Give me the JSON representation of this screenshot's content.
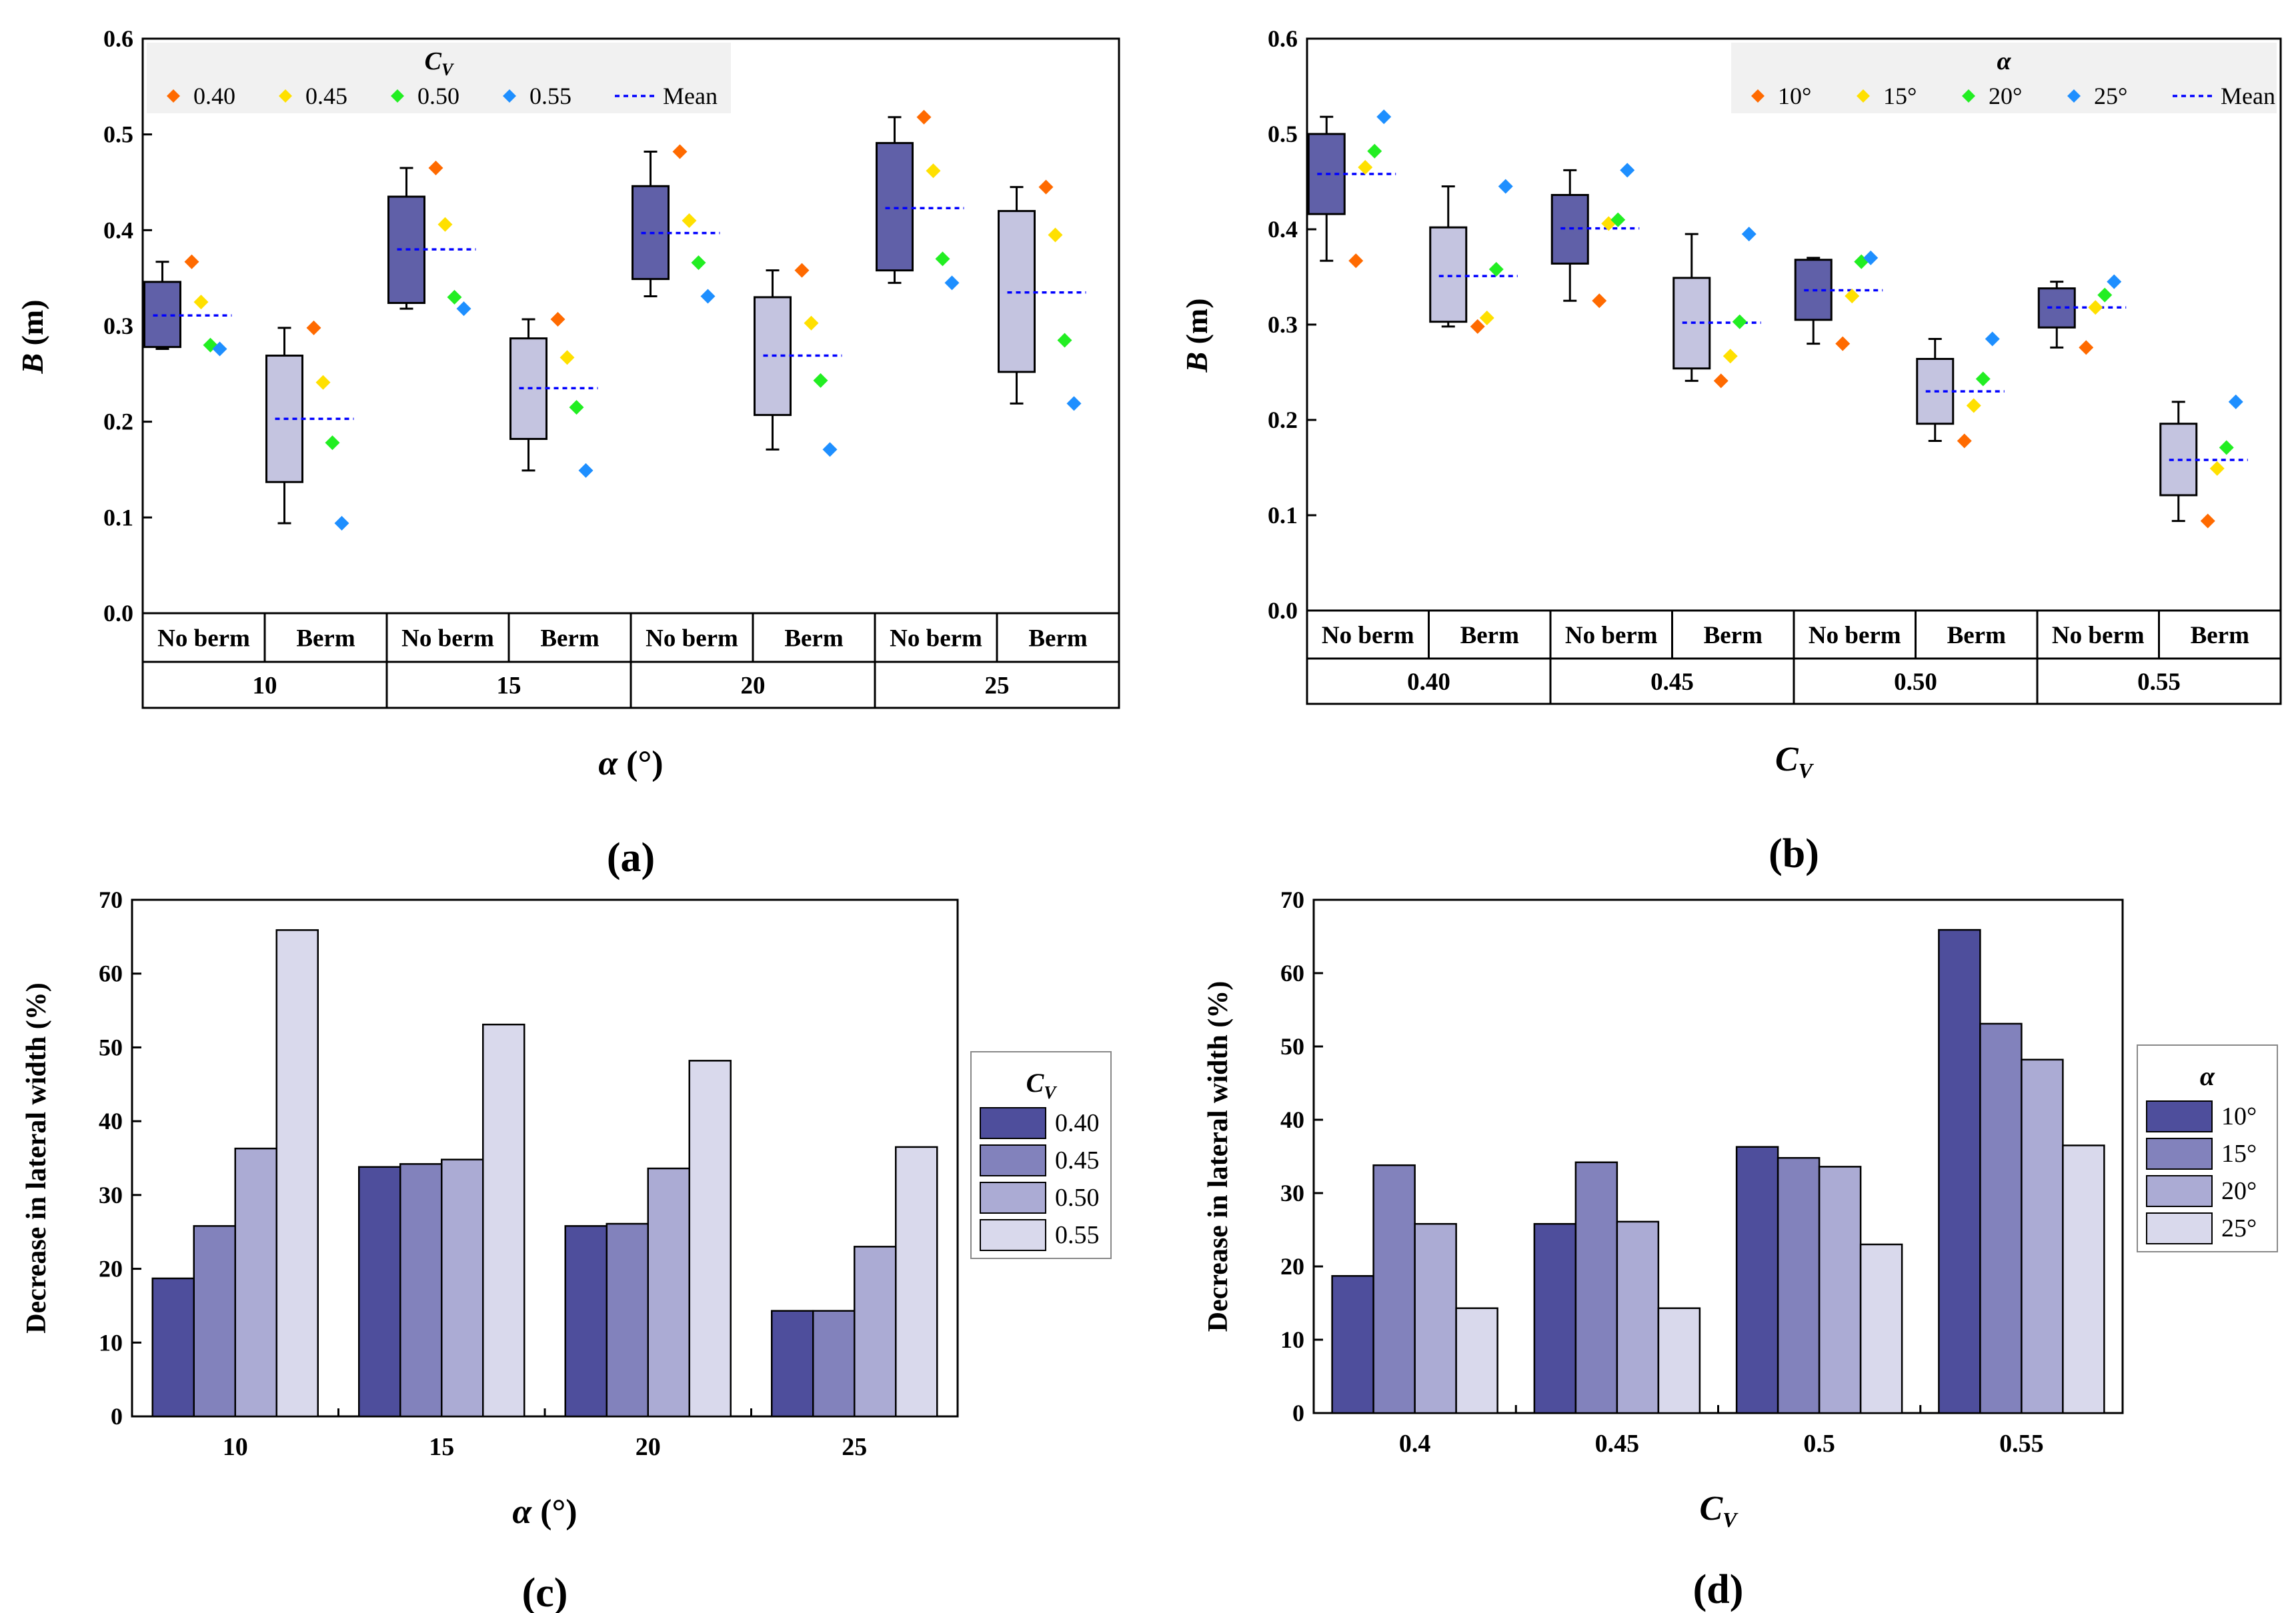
{
  "colors": {
    "box_noberm": "#6060a8",
    "box_berm": "#c4c4e0",
    "mean_line": "#0000ff",
    "pt_040": "#ff6a00",
    "pt_045": "#ffe000",
    "pt_050": "#22ee22",
    "pt_055": "#1e8fff",
    "bar1": "#4e4e9c",
    "bar2": "#8282bc",
    "bar3": "#ababd4",
    "bar4": "#d9d9ec",
    "legend_bg": "#f1f1f1"
  },
  "chart_data": [
    {
      "id": "a",
      "type": "box",
      "panel_label": "(a)",
      "ylabel_main": "B",
      "ylabel_unit": " (m)",
      "xlabel_main": "α",
      "xlabel_unit": " (°)",
      "ylim": [
        0,
        0.6
      ],
      "yticks": [
        "0.0",
        "0.1",
        "0.2",
        "0.3",
        "0.4",
        "0.5",
        "0.6"
      ],
      "groups": [
        "10",
        "15",
        "20",
        "25"
      ],
      "subgroups": [
        "No berm",
        "Berm"
      ],
      "legend": {
        "title": "C",
        "title_sub": "V",
        "entries": [
          "0.40",
          "0.45",
          "0.50",
          "0.55"
        ],
        "mean_label": "Mean"
      },
      "boxes": [
        {
          "group": "10",
          "sub": "No berm",
          "min": 0.276,
          "q1": 0.278,
          "q3": 0.346,
          "max": 0.367,
          "mean": 0.311,
          "points": [
            0.367,
            0.325,
            0.28,
            0.276
          ]
        },
        {
          "group": "10",
          "sub": "Berm",
          "min": 0.094,
          "q1": 0.137,
          "q3": 0.269,
          "max": 0.298,
          "mean": 0.203,
          "points": [
            0.298,
            0.241,
            0.178,
            0.094
          ]
        },
        {
          "group": "15",
          "sub": "No berm",
          "min": 0.318,
          "q1": 0.324,
          "q3": 0.435,
          "max": 0.465,
          "mean": 0.38,
          "points": [
            0.465,
            0.406,
            0.33,
            0.318
          ]
        },
        {
          "group": "15",
          "sub": "Berm",
          "min": 0.149,
          "q1": 0.182,
          "q3": 0.287,
          "max": 0.307,
          "mean": 0.235,
          "points": [
            0.307,
            0.267,
            0.215,
            0.149
          ]
        },
        {
          "group": "20",
          "sub": "No berm",
          "min": 0.331,
          "q1": 0.349,
          "q3": 0.446,
          "max": 0.482,
          "mean": 0.397,
          "points": [
            0.482,
            0.41,
            0.366,
            0.331
          ]
        },
        {
          "group": "20",
          "sub": "Berm",
          "min": 0.171,
          "q1": 0.207,
          "q3": 0.33,
          "max": 0.358,
          "mean": 0.269,
          "points": [
            0.358,
            0.303,
            0.243,
            0.171
          ]
        },
        {
          "group": "25",
          "sub": "No berm",
          "min": 0.345,
          "q1": 0.358,
          "q3": 0.491,
          "max": 0.518,
          "mean": 0.423,
          "points": [
            0.518,
            0.462,
            0.37,
            0.345
          ]
        },
        {
          "group": "25",
          "sub": "Berm",
          "min": 0.219,
          "q1": 0.252,
          "q3": 0.42,
          "max": 0.445,
          "mean": 0.335,
          "points": [
            0.445,
            0.395,
            0.285,
            0.219
          ]
        }
      ]
    },
    {
      "id": "b",
      "type": "box",
      "panel_label": "(b)",
      "ylabel_main": "B",
      "ylabel_unit": " (m)",
      "xlabel_main": "C",
      "xlabel_sub": "V",
      "ylim": [
        0,
        0.6
      ],
      "yticks": [
        "0.0",
        "0.1",
        "0.2",
        "0.3",
        "0.4",
        "0.5",
        "0.6"
      ],
      "groups": [
        "0.40",
        "0.45",
        "0.50",
        "0.55"
      ],
      "subgroups": [
        "No berm",
        "Berm"
      ],
      "legend": {
        "title": "α",
        "entries": [
          "10°",
          "15°",
          "20°",
          "25°"
        ],
        "mean_label": "Mean"
      },
      "boxes": [
        {
          "group": "0.40",
          "sub": "No berm",
          "min": 0.367,
          "q1": 0.416,
          "q3": 0.5,
          "max": 0.518,
          "mean": 0.458,
          "points": [
            0.367,
            0.465,
            0.482,
            0.518
          ]
        },
        {
          "group": "0.40",
          "sub": "Berm",
          "min": 0.298,
          "q1": 0.303,
          "q3": 0.402,
          "max": 0.445,
          "mean": 0.351,
          "points": [
            0.298,
            0.307,
            0.358,
            0.445
          ]
        },
        {
          "group": "0.45",
          "sub": "No berm",
          "min": 0.325,
          "q1": 0.364,
          "q3": 0.436,
          "max": 0.462,
          "mean": 0.401,
          "points": [
            0.325,
            0.406,
            0.41,
            0.462
          ]
        },
        {
          "group": "0.45",
          "sub": "Berm",
          "min": 0.241,
          "q1": 0.254,
          "q3": 0.349,
          "max": 0.395,
          "mean": 0.302,
          "points": [
            0.241,
            0.267,
            0.303,
            0.395
          ]
        },
        {
          "group": "0.50",
          "sub": "No berm",
          "min": 0.28,
          "q1": 0.305,
          "q3": 0.368,
          "max": 0.37,
          "mean": 0.336,
          "points": [
            0.28,
            0.33,
            0.366,
            0.37
          ]
        },
        {
          "group": "0.50",
          "sub": "Berm",
          "min": 0.178,
          "q1": 0.196,
          "q3": 0.264,
          "max": 0.285,
          "mean": 0.23,
          "points": [
            0.178,
            0.215,
            0.243,
            0.285
          ]
        },
        {
          "group": "0.55",
          "sub": "No berm",
          "min": 0.276,
          "q1": 0.297,
          "q3": 0.338,
          "max": 0.345,
          "mean": 0.318,
          "points": [
            0.276,
            0.318,
            0.331,
            0.345
          ]
        },
        {
          "group": "0.55",
          "sub": "Berm",
          "min": 0.094,
          "q1": 0.121,
          "q3": 0.196,
          "max": 0.219,
          "mean": 0.158,
          "points": [
            0.094,
            0.149,
            0.171,
            0.219
          ]
        }
      ]
    },
    {
      "id": "c",
      "type": "bar",
      "panel_label": "(c)",
      "ylabel": "Decrease in lateral width (%)",
      "xlabel_main": "α",
      "xlabel_unit": " (°)",
      "ylim": [
        0,
        70
      ],
      "yticks": [
        "0",
        "10",
        "20",
        "30",
        "40",
        "50",
        "60",
        "70"
      ],
      "categories": [
        "10",
        "15",
        "20",
        "25"
      ],
      "legend": {
        "title": "C",
        "title_sub": "V"
      },
      "series": [
        {
          "name": "0.40",
          "values": [
            18.7,
            33.8,
            25.8,
            14.3
          ]
        },
        {
          "name": "0.45",
          "values": [
            25.8,
            34.2,
            26.1,
            14.3
          ]
        },
        {
          "name": "0.50",
          "values": [
            36.3,
            34.8,
            33.6,
            23.0
          ]
        },
        {
          "name": "0.55",
          "values": [
            65.9,
            53.1,
            48.2,
            36.5
          ]
        }
      ]
    },
    {
      "id": "d",
      "type": "bar",
      "panel_label": "(d)",
      "ylabel": "Decrease in lateral width (%)",
      "xlabel_main": "C",
      "xlabel_sub": "V",
      "ylim": [
        0,
        70
      ],
      "yticks": [
        "0",
        "10",
        "20",
        "30",
        "40",
        "50",
        "60",
        "70"
      ],
      "categories": [
        "0.4",
        "0.45",
        "0.5",
        "0.55"
      ],
      "legend": {
        "title": "α"
      },
      "series": [
        {
          "name": "10°",
          "values": [
            18.7,
            25.8,
            36.3,
            65.9
          ]
        },
        {
          "name": "15°",
          "values": [
            33.8,
            34.2,
            34.8,
            53.1
          ]
        },
        {
          "name": "20°",
          "values": [
            25.8,
            26.1,
            33.6,
            48.2
          ]
        },
        {
          "name": "25°",
          "values": [
            14.3,
            14.3,
            23.0,
            36.5
          ]
        }
      ]
    }
  ]
}
